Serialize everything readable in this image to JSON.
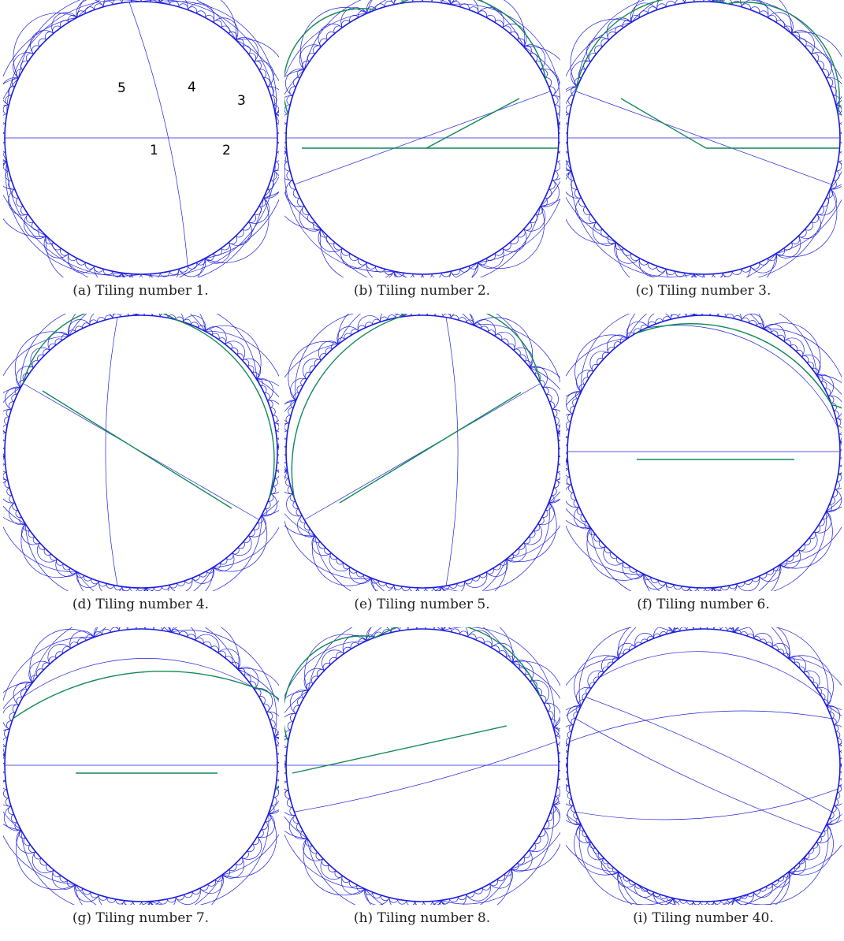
{
  "colors": {
    "tiling": "#2020dd",
    "boundary": "#1a1ae0",
    "highlight": "#118855"
  },
  "edge_labels": [
    "1",
    "2",
    "3",
    "4",
    "5"
  ],
  "panels": [
    {
      "caption": "(a) Tiling number 1."
    },
    {
      "caption": "(b) Tiling number 2."
    },
    {
      "caption": "(c) Tiling number 3."
    },
    {
      "caption": "(d) Tiling number 4."
    },
    {
      "caption": "(e) Tiling number 5."
    },
    {
      "caption": "(f) Tiling number 6."
    },
    {
      "caption": "(g) Tiling number 7."
    },
    {
      "caption": "(h) Tiling number 8."
    },
    {
      "caption": "(i) Tiling number 40."
    }
  ]
}
